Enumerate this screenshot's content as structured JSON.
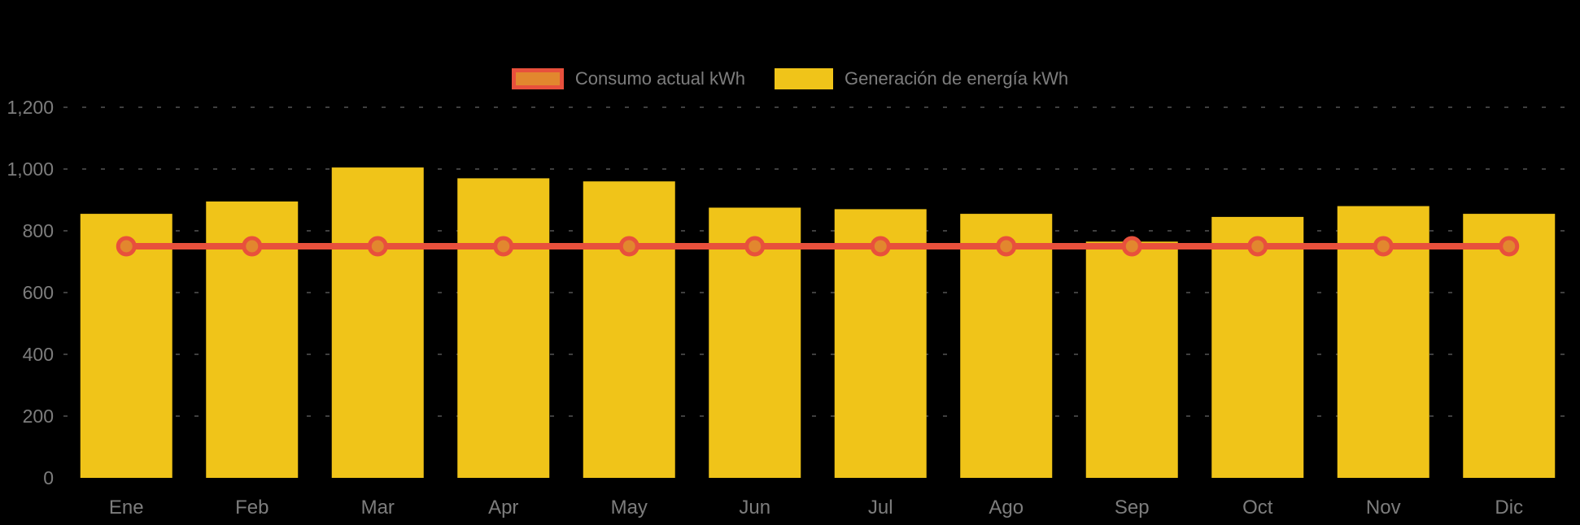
{
  "chart_data": {
    "type": "bar",
    "title": "",
    "xlabel": "",
    "ylabel": "",
    "categories": [
      "Ene",
      "Feb",
      "Mar",
      "Apr",
      "May",
      "Jun",
      "Jul",
      "Ago",
      "Sep",
      "Oct",
      "Nov",
      "Dic"
    ],
    "series": [
      {
        "name": "Consumo actual kWh",
        "type": "line",
        "values": [
          750,
          750,
          750,
          750,
          750,
          750,
          750,
          750,
          750,
          750,
          750,
          750
        ]
      },
      {
        "name": "Generación de energía kWh",
        "type": "bar",
        "values": [
          855,
          895,
          1005,
          970,
          960,
          875,
          870,
          855,
          765,
          845,
          880,
          855
        ]
      }
    ],
    "ylim": [
      0,
      1200
    ],
    "yticks": [
      0,
      200,
      400,
      600,
      800,
      1000,
      1200
    ],
    "ytick_labels": [
      "0",
      "200",
      "400",
      "600",
      "800",
      "1,000",
      "1,200"
    ],
    "grid": "dotted-horizontal",
    "legend_position": "top-center",
    "colors": {
      "bar": "#f0c419",
      "line": "#e8503c",
      "point_fill": "#e2872e",
      "axis_text": "#7d7d7d",
      "gridline": "#3f3f3f",
      "background": "#000000"
    }
  }
}
